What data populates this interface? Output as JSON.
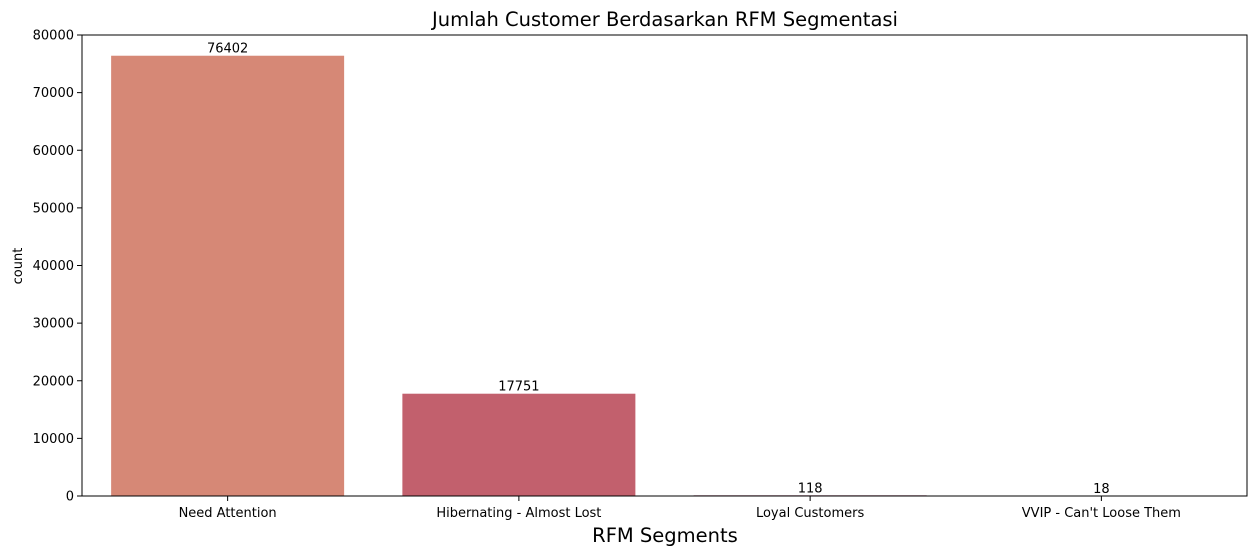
{
  "chart_data": {
    "type": "bar",
    "title": "Jumlah Customer Berdasarkan RFM Segmentasi",
    "xlabel": "RFM Segments",
    "ylabel": "count",
    "categories": [
      "Need Attention",
      "Hibernating - Almost Lost",
      "Loyal Customers",
      "VVIP - Can't Loose Them"
    ],
    "values": [
      76402,
      17751,
      118,
      18
    ],
    "data_labels": [
      "76402",
      "17751",
      "118",
      "18"
    ],
    "colors": [
      "#d68876",
      "#c2606d",
      "#9c4566",
      "#6a3161"
    ],
    "ylim": [
      0,
      80000
    ],
    "yticks": [
      0,
      10000,
      20000,
      30000,
      40000,
      50000,
      60000,
      70000,
      80000
    ],
    "grid": false,
    "legend": "none"
  }
}
